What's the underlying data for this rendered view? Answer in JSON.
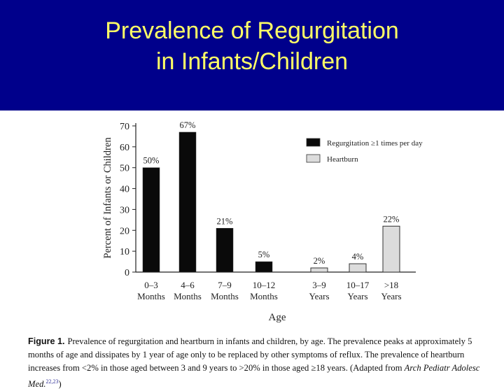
{
  "slide": {
    "title_line1": "Prevalence of Regurgitation",
    "title_line2": "in Infants/Children",
    "header_color": "#00008b",
    "title_color": "#ffff66"
  },
  "chart_data": {
    "type": "bar",
    "ylabel": "Percent of Infants or Children",
    "xlabel": "Age",
    "ylim": [
      0,
      70
    ],
    "yticks": [
      0,
      10,
      20,
      30,
      40,
      50,
      60,
      70
    ],
    "grid": false,
    "legend_position": "top-right",
    "bars": [
      {
        "line1": "0–3",
        "line2": "Months",
        "value": 50,
        "label": "50%",
        "series": "regurg"
      },
      {
        "line1": "4–6",
        "line2": "Months",
        "value": 67,
        "label": "67%",
        "series": "regurg"
      },
      {
        "line1": "7–9",
        "line2": "Months",
        "value": 21,
        "label": "21%",
        "series": "regurg"
      },
      {
        "line1": "10–12",
        "line2": "Months",
        "value": 5,
        "label": "5%",
        "series": "regurg"
      },
      {
        "line1": "3–9",
        "line2": "Years",
        "value": 2,
        "label": "2%",
        "series": "heartburn"
      },
      {
        "line1": "10–17",
        "line2": "Years",
        "value": 4,
        "label": "4%",
        "series": "heartburn"
      },
      {
        "line1": ">18",
        "line2": "Years",
        "value": 22,
        "label": "22%",
        "series": "heartburn"
      }
    ],
    "series": [
      {
        "id": "regurg",
        "name": "Regurgitation ≥1 times per day",
        "color": "#0a0a0a"
      },
      {
        "id": "heartburn",
        "name": "Heartburn",
        "color": "#dcdcdc"
      }
    ]
  },
  "caption": {
    "figure_label": "Figure 1.",
    "text": "Prevalence of regurgitation and heartburn in infants and children, by age. The prevalence peaks at approximately 5 months of age and dissipates by 1 year of age only to be replaced by other symptoms of reflux. The prevalence of heartburn increases from <2% in those aged between 3 and 9 years to >20% in those aged ≥18 years. (Adapted from ",
    "journal": "Arch Pediatr Adolesc Med.",
    "refs": "22,23",
    "closing": ")"
  }
}
